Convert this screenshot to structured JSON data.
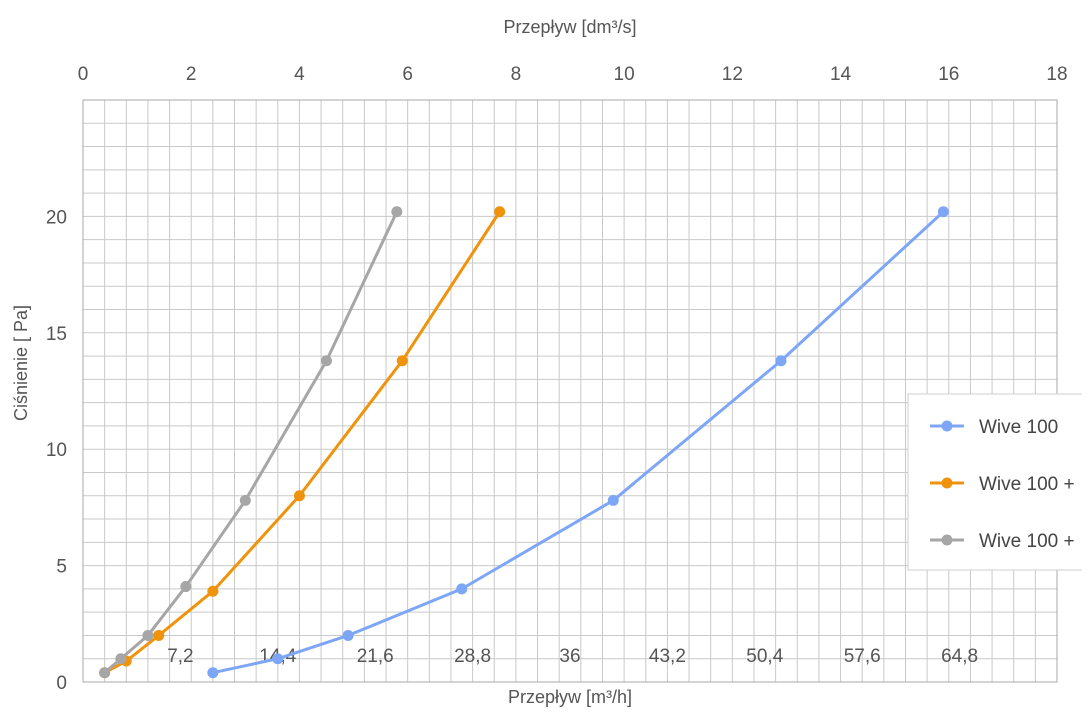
{
  "chart_data": {
    "type": "line",
    "xlabel_top": "Przepływ [dm³/s]",
    "xlabel_bottom": "Przepływ [m³/h]",
    "ylabel": "Ciśnienie [ Pa]",
    "x_top_ticks": [
      "0",
      "2",
      "4",
      "6",
      "8",
      "10",
      "12",
      "14",
      "16",
      "18"
    ],
    "x_bottom_ticks": [
      "7,2",
      "14,4",
      "21,6",
      "28,8",
      "36",
      "43,2",
      "50,4",
      "57,6",
      "64,8"
    ],
    "y_ticks": [
      "0",
      "5",
      "10",
      "15",
      "20"
    ],
    "xlim": [
      0,
      18
    ],
    "ylim": [
      0,
      25
    ],
    "grid": true,
    "legend_position": "right",
    "series": [
      {
        "name": "Wive 100",
        "color": "#7ea6f6",
        "points": [
          [
            2.4,
            0.4
          ],
          [
            3.6,
            1.0
          ],
          [
            4.9,
            2.0
          ],
          [
            7.0,
            4.0
          ],
          [
            9.8,
            7.8
          ],
          [
            12.9,
            13.8
          ],
          [
            15.9,
            20.2
          ]
        ]
      },
      {
        "name": "Wive 100 +",
        "color": "#f0930c",
        "points": [
          [
            0.4,
            0.4
          ],
          [
            0.8,
            0.9
          ],
          [
            1.4,
            2.0
          ],
          [
            2.4,
            3.9
          ],
          [
            4.0,
            8.0
          ],
          [
            5.9,
            13.8
          ],
          [
            7.7,
            20.2
          ]
        ]
      },
      {
        "name": "Wive 100 +",
        "color": "#a6a6a6",
        "points": [
          [
            0.4,
            0.4
          ],
          [
            0.7,
            1.0
          ],
          [
            1.2,
            2.0
          ],
          [
            1.9,
            4.1
          ],
          [
            3.0,
            7.8
          ],
          [
            4.5,
            13.8
          ],
          [
            5.8,
            20.2
          ]
        ]
      }
    ]
  }
}
